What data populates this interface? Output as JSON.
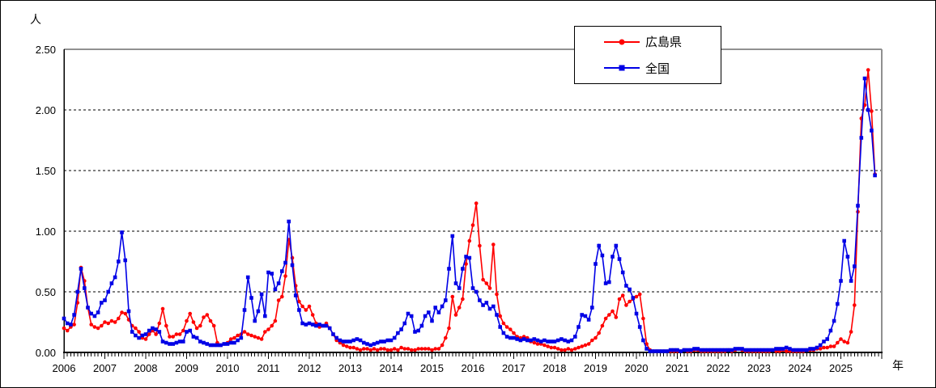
{
  "figure": {
    "y_axis_unit": "人",
    "x_axis_unit": "年"
  },
  "legend": {
    "items": [
      {
        "label": "広島県",
        "color": "#FF0000",
        "marker": "circle"
      },
      {
        "label": "全国",
        "color": "#0000E6",
        "marker": "square"
      }
    ]
  },
  "chart_data": {
    "type": "line",
    "title": "",
    "xlabel": "年",
    "ylabel": "人",
    "ylim": [
      0,
      2.5
    ],
    "ytick_labels": [
      "0.00",
      "0.50",
      "1.00",
      "1.50",
      "2.00",
      "2.50"
    ],
    "x_tick_labels": [
      "2006",
      "2007",
      "2008",
      "2009",
      "2010",
      "2011",
      "2012",
      "2013",
      "2014",
      "2015",
      "2016",
      "2017",
      "2018",
      "2019",
      "2020",
      "2021",
      "2022",
      "2023",
      "2024",
      "2025"
    ],
    "x_start": "2006-01",
    "points_per_year": 12,
    "grid": "horizontal-dashed",
    "legend_position": "top-center",
    "axis_color": "#000000",
    "plot_border_color": "#909090",
    "series": [
      {
        "name": "広島県",
        "color": "#FF0000",
        "marker": "circle",
        "values": [
          0.2,
          0.18,
          0.21,
          0.23,
          0.41,
          0.7,
          0.59,
          0.37,
          0.23,
          0.21,
          0.2,
          0.22,
          0.25,
          0.24,
          0.26,
          0.25,
          0.28,
          0.33,
          0.32,
          0.27,
          0.22,
          0.2,
          0.17,
          0.12,
          0.11,
          0.15,
          0.18,
          0.15,
          0.24,
          0.36,
          0.22,
          0.13,
          0.13,
          0.15,
          0.15,
          0.18,
          0.26,
          0.32,
          0.25,
          0.2,
          0.22,
          0.29,
          0.31,
          0.26,
          0.22,
          0.08,
          0.06,
          0.07,
          0.08,
          0.11,
          0.12,
          0.14,
          0.15,
          0.17,
          0.15,
          0.14,
          0.13,
          0.12,
          0.11,
          0.17,
          0.19,
          0.22,
          0.26,
          0.43,
          0.46,
          0.63,
          0.93,
          0.78,
          0.55,
          0.42,
          0.38,
          0.35,
          0.38,
          0.31,
          0.24,
          0.21,
          0.22,
          0.24,
          0.2,
          0.15,
          0.1,
          0.08,
          0.06,
          0.05,
          0.04,
          0.04,
          0.03,
          0.02,
          0.03,
          0.03,
          0.02,
          0.03,
          0.02,
          0.03,
          0.03,
          0.02,
          0.02,
          0.03,
          0.02,
          0.04,
          0.03,
          0.03,
          0.02,
          0.02,
          0.03,
          0.03,
          0.03,
          0.03,
          0.02,
          0.03,
          0.03,
          0.06,
          0.12,
          0.2,
          0.46,
          0.31,
          0.37,
          0.44,
          0.73,
          0.92,
          1.05,
          1.23,
          0.88,
          0.6,
          0.57,
          0.53,
          0.89,
          0.48,
          0.3,
          0.24,
          0.21,
          0.19,
          0.16,
          0.13,
          0.12,
          0.13,
          0.12,
          0.09,
          0.08,
          0.07,
          0.07,
          0.06,
          0.05,
          0.04,
          0.04,
          0.03,
          0.02,
          0.02,
          0.03,
          0.02,
          0.03,
          0.04,
          0.05,
          0.06,
          0.07,
          0.1,
          0.12,
          0.16,
          0.22,
          0.28,
          0.31,
          0.34,
          0.29,
          0.44,
          0.47,
          0.39,
          0.42,
          0.44,
          0.46,
          0.48,
          0.28,
          0.07,
          0.02,
          0.01,
          0.01,
          0.01,
          0.01,
          0.01,
          0.01,
          0.01,
          0.01,
          0.01,
          0.02,
          0.01,
          0.01,
          0.02,
          0.02,
          0.01,
          0.01,
          0.01,
          0.01,
          0.01,
          0.01,
          0.01,
          0.01,
          0.02,
          0.01,
          0.02,
          0.03,
          0.02,
          0.01,
          0.01,
          0.01,
          0.01,
          0.01,
          0.01,
          0.01,
          0.01,
          0.02,
          0.01,
          0.01,
          0.02,
          0.01,
          0.01,
          0.01,
          0.01,
          0.01,
          0.01,
          0.02,
          0.02,
          0.02,
          0.03,
          0.03,
          0.04,
          0.04,
          0.05,
          0.05,
          0.08,
          0.11,
          0.09,
          0.08,
          0.17,
          0.39,
          1.16,
          1.93,
          2.04,
          2.33,
          1.99,
          1.47
        ]
      },
      {
        "name": "全国",
        "color": "#0000E6",
        "marker": "square",
        "values": [
          0.28,
          0.24,
          0.23,
          0.31,
          0.5,
          0.69,
          0.53,
          0.37,
          0.32,
          0.3,
          0.33,
          0.41,
          0.43,
          0.5,
          0.57,
          0.62,
          0.75,
          0.99,
          0.76,
          0.34,
          0.17,
          0.14,
          0.12,
          0.14,
          0.15,
          0.18,
          0.2,
          0.19,
          0.17,
          0.09,
          0.08,
          0.07,
          0.07,
          0.08,
          0.09,
          0.09,
          0.17,
          0.18,
          0.13,
          0.12,
          0.09,
          0.08,
          0.07,
          0.06,
          0.06,
          0.06,
          0.06,
          0.07,
          0.07,
          0.08,
          0.08,
          0.1,
          0.12,
          0.35,
          0.62,
          0.45,
          0.26,
          0.34,
          0.48,
          0.3,
          0.66,
          0.65,
          0.52,
          0.57,
          0.67,
          0.74,
          1.08,
          0.72,
          0.47,
          0.35,
          0.24,
          0.23,
          0.24,
          0.23,
          0.22,
          0.23,
          0.22,
          0.22,
          0.2,
          0.15,
          0.12,
          0.1,
          0.09,
          0.09,
          0.09,
          0.1,
          0.11,
          0.1,
          0.08,
          0.07,
          0.06,
          0.07,
          0.08,
          0.09,
          0.09,
          0.1,
          0.1,
          0.12,
          0.16,
          0.19,
          0.24,
          0.32,
          0.3,
          0.17,
          0.18,
          0.22,
          0.3,
          0.33,
          0.26,
          0.37,
          0.33,
          0.38,
          0.43,
          0.69,
          0.96,
          0.57,
          0.53,
          0.69,
          0.79,
          0.78,
          0.53,
          0.5,
          0.43,
          0.39,
          0.41,
          0.36,
          0.38,
          0.31,
          0.21,
          0.16,
          0.13,
          0.12,
          0.12,
          0.11,
          0.1,
          0.11,
          0.1,
          0.1,
          0.11,
          0.1,
          0.09,
          0.1,
          0.09,
          0.09,
          0.09,
          0.1,
          0.11,
          0.1,
          0.09,
          0.1,
          0.13,
          0.21,
          0.31,
          0.3,
          0.27,
          0.37,
          0.73,
          0.88,
          0.8,
          0.57,
          0.58,
          0.79,
          0.88,
          0.77,
          0.66,
          0.55,
          0.52,
          0.45,
          0.32,
          0.21,
          0.1,
          0.03,
          0.01,
          0.01,
          0.01,
          0.01,
          0.01,
          0.01,
          0.02,
          0.02,
          0.02,
          0.01,
          0.02,
          0.02,
          0.02,
          0.03,
          0.03,
          0.02,
          0.02,
          0.02,
          0.02,
          0.02,
          0.02,
          0.02,
          0.02,
          0.02,
          0.02,
          0.03,
          0.03,
          0.03,
          0.02,
          0.02,
          0.02,
          0.02,
          0.02,
          0.02,
          0.02,
          0.02,
          0.02,
          0.03,
          0.03,
          0.03,
          0.04,
          0.03,
          0.02,
          0.02,
          0.02,
          0.02,
          0.02,
          0.03,
          0.03,
          0.04,
          0.06,
          0.09,
          0.11,
          0.18,
          0.26,
          0.4,
          0.59,
          0.92,
          0.79,
          0.59,
          0.71,
          1.21,
          1.77,
          2.26,
          2.0,
          1.83,
          1.46
        ]
      }
    ]
  }
}
